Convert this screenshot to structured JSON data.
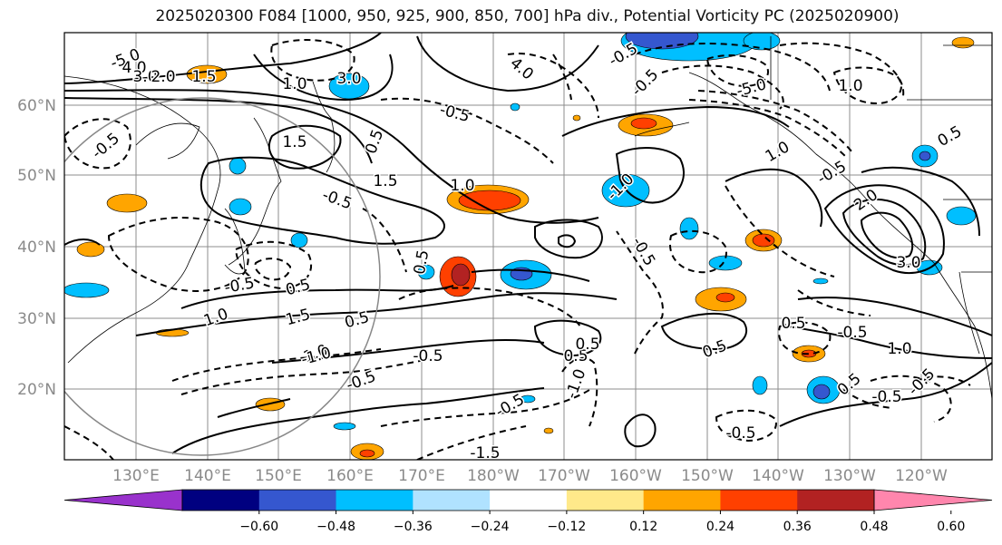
{
  "title": "2025020300 F084 [1000, 950, 925, 900, 850, 700] hPa div., Potential Vorticity PC (2025020900)",
  "map": {
    "lat_labels": [
      "60°N",
      "50°N",
      "40°N",
      "30°N",
      "20°N"
    ],
    "lon_labels": [
      "130°E",
      "140°E",
      "150°E",
      "160°E",
      "170°E",
      "180°W",
      "170°W",
      "160°W",
      "150°W",
      "140°W",
      "130°W",
      "120°W"
    ],
    "contour_labels": [
      {
        "text": "-5.0"
      },
      {
        "text": "4.0"
      },
      {
        "text": "3.0"
      },
      {
        "text": "2.0"
      },
      {
        "text": "1.5"
      },
      {
        "text": "1.0"
      },
      {
        "text": "3.0"
      },
      {
        "text": "-0.5"
      },
      {
        "text": "0.5"
      },
      {
        "text": "1.5"
      },
      {
        "text": "-0.5"
      },
      {
        "text": "1.5"
      },
      {
        "text": "1.0"
      },
      {
        "text": "-0.5"
      },
      {
        "text": "1.0"
      },
      {
        "text": "0.5"
      },
      {
        "text": "-0.5"
      },
      {
        "text": "0.5"
      },
      {
        "text": "1.0"
      },
      {
        "text": "1.5"
      },
      {
        "text": "0.5"
      },
      {
        "text": "-1.0"
      },
      {
        "text": "-0.5"
      },
      {
        "text": "-0.5"
      },
      {
        "text": "-0.5"
      },
      {
        "text": "0.5"
      },
      {
        "text": "-1.0"
      },
      {
        "text": "0.5"
      },
      {
        "text": "-0.5"
      },
      {
        "text": "1.0"
      },
      {
        "text": "-0.5"
      },
      {
        "text": "2.0"
      },
      {
        "text": "-0.5"
      },
      {
        "text": "0.5"
      },
      {
        "text": "-0.5"
      },
      {
        "text": "1.0"
      },
      {
        "text": "0.5"
      },
      {
        "text": "-0.5"
      },
      {
        "text": "-0.5"
      },
      {
        "text": "0.5"
      },
      {
        "text": "-5.0"
      },
      {
        "text": "-1.0"
      },
      {
        "text": "4.0"
      },
      {
        "text": "-0.5"
      },
      {
        "text": "-1.5"
      },
      {
        "text": "-0.5"
      },
      {
        "text": "0.5"
      },
      {
        "text": "3.0"
      },
      {
        "text": "1.0"
      }
    ],
    "colors": {
      "contour": "#000000",
      "grid": "#8c8c8c",
      "coast": "#000000",
      "range_ring": "#888888"
    }
  },
  "colorbar": {
    "colors": [
      "#9932cc",
      "#000080",
      "#3557cf",
      "#00bfff",
      "#b0e2ff",
      "#ffffff",
      "#ffe98a",
      "#ffa500",
      "#ff4000",
      "#b22222",
      "#ff86ad"
    ],
    "tick_labels": [
      "−0.60",
      "−0.48",
      "−0.36",
      "−0.24",
      "−0.12",
      "0.12",
      "0.24",
      "0.36",
      "0.48",
      "0.60"
    ]
  }
}
